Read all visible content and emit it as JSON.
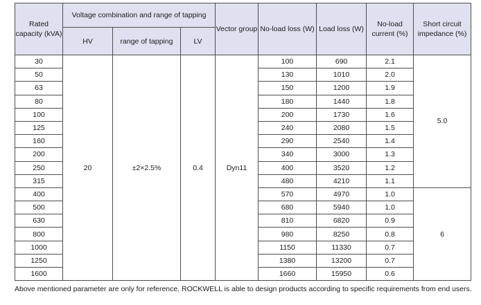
{
  "headers": {
    "rated_capacity": "Rated capacity (kVA)",
    "voltage_group": "Voltage combination and range of tapping",
    "hv": "HV",
    "range_of_tapping": "range of tapping",
    "lv": "LV",
    "vector_group": "Vector group",
    "no_load_loss": "No-load loss (W)",
    "load_loss": "Load loss (W)",
    "no_load_current": "No-load current (%)",
    "impedance": "Short circuit impedance (%)"
  },
  "merged": {
    "hv": "20",
    "range_of_tapping": "±2×2.5%",
    "lv": "0.4",
    "vector_group": "Dyn11",
    "impedance_low": "5.0",
    "impedance_high": "6"
  },
  "rows": [
    {
      "capacity": "30",
      "no_load_loss": "100",
      "load_loss": "690",
      "no_load_current": "2.1"
    },
    {
      "capacity": "50",
      "no_load_loss": "130",
      "load_loss": "1010",
      "no_load_current": "2.0"
    },
    {
      "capacity": "63",
      "no_load_loss": "150",
      "load_loss": "1200",
      "no_load_current": "1.9"
    },
    {
      "capacity": "80",
      "no_load_loss": "180",
      "load_loss": "1440",
      "no_load_current": "1.8"
    },
    {
      "capacity": "100",
      "no_load_loss": "200",
      "load_loss": "1730",
      "no_load_current": "1.6"
    },
    {
      "capacity": "125",
      "no_load_loss": "240",
      "load_loss": "2080",
      "no_load_current": "1.5"
    },
    {
      "capacity": "160",
      "no_load_loss": "290",
      "load_loss": "2540",
      "no_load_current": "1.4"
    },
    {
      "capacity": "200",
      "no_load_loss": "340",
      "load_loss": "3000",
      "no_load_current": "1.3"
    },
    {
      "capacity": "250",
      "no_load_loss": "400",
      "load_loss": "3520",
      "no_load_current": "1.2"
    },
    {
      "capacity": "315",
      "no_load_loss": "480",
      "load_loss": "4210",
      "no_load_current": "1.1"
    },
    {
      "capacity": "400",
      "no_load_loss": "570",
      "load_loss": "4970",
      "no_load_current": "1.0"
    },
    {
      "capacity": "500",
      "no_load_loss": "680",
      "load_loss": "5940",
      "no_load_current": "1.0"
    },
    {
      "capacity": "630",
      "no_load_loss": "810",
      "load_loss": "6820",
      "no_load_current": "0.9"
    },
    {
      "capacity": "800",
      "no_load_loss": "980",
      "load_loss": "8250",
      "no_load_current": "0.8"
    },
    {
      "capacity": "1000",
      "no_load_loss": "1150",
      "load_loss": "11330",
      "no_load_current": "0.7"
    },
    {
      "capacity": "1250",
      "no_load_loss": "1380",
      "load_loss": "13200",
      "no_load_current": "0.7"
    },
    {
      "capacity": "1600",
      "no_load_loss": "1660",
      "load_loss": "15950",
      "no_load_current": "0.6"
    }
  ],
  "note": "Above mentioned parameter are only for reference, ROCKWELL is able to design products according to specific requirements from end users."
}
